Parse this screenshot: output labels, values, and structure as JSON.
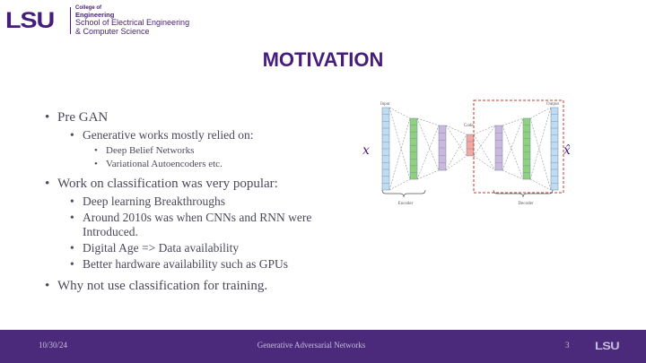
{
  "header": {
    "logo_text": "LSU",
    "college_label": "College of",
    "college_name": "Engineering",
    "school_line1": "School of Electrical Engineering",
    "school_line2": "& Computer Science"
  },
  "slide": {
    "title": "MOTIVATION",
    "bullets": {
      "pre_gan": "Pre GAN",
      "generative_works": "Generative works mostly relied on:",
      "dbn": "Deep Belief Networks",
      "vae": "Variational Autoencoders etc.",
      "classification_popular": "Work on classification was very popular:",
      "deep_learning": "Deep learning Breakthroughs",
      "cnn_rnn": "Around 2010s was when CNNs and RNN were Introduced.",
      "digital_age": "Digital Age => Data availability",
      "hardware": "Better hardware availability such as GPUs",
      "why_not": "Why not use classification for training."
    },
    "bullet_glyph": "•"
  },
  "diagram": {
    "input_label": "Input",
    "output_label": "Output",
    "code_label": "Code",
    "encoder_label": "Encoder",
    "decoder_label": "Decoder",
    "x_symbol": "x",
    "x_hat_symbol": "x̂",
    "colors": {
      "blue": "#bfdcf2",
      "green": "#8fd17d",
      "purple": "#cdb8dd",
      "red": "#f2a8a0",
      "dashed_box": "#c0392b"
    }
  },
  "footer": {
    "date": "10/30/24",
    "title": "Generative Adversarial Networks",
    "page": "3",
    "logo_text": "LSU"
  },
  "theme": {
    "purple": "#461D7C",
    "footer_bg": "#4b2a7b"
  }
}
